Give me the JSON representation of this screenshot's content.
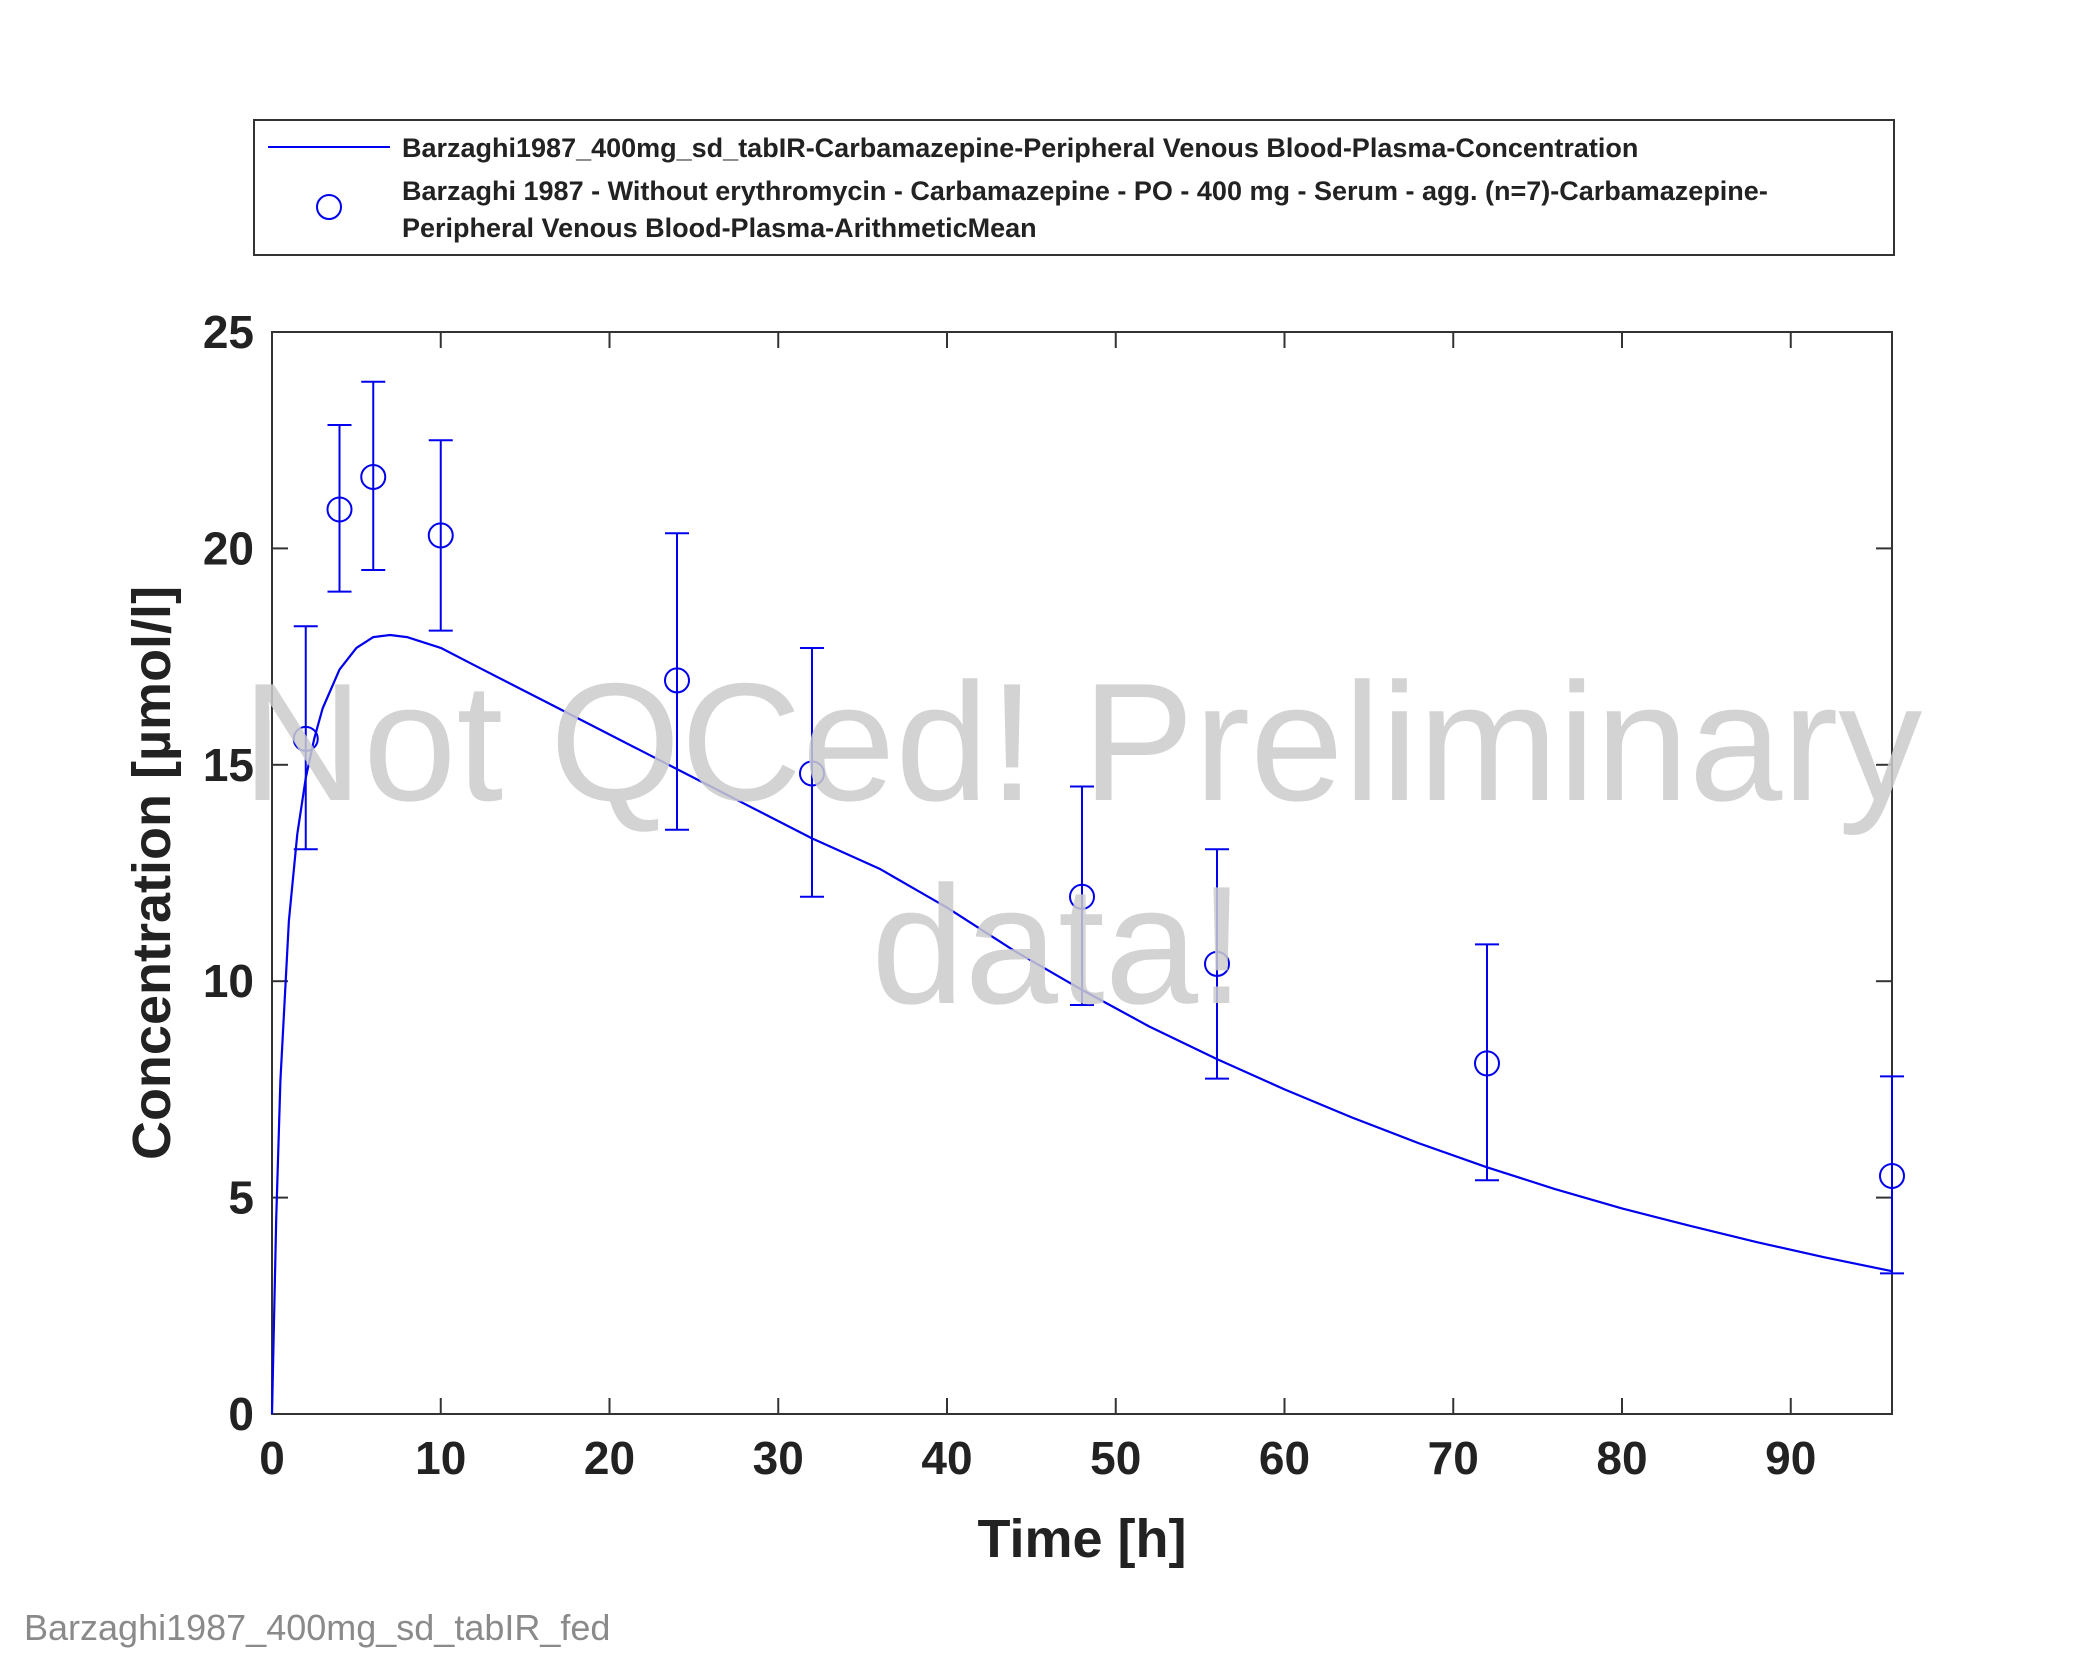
{
  "chart_data": {
    "type": "line",
    "xlabel": "Time [h]",
    "ylabel": "Concentration [µmol/l]",
    "xlim": [
      0,
      96
    ],
    "ylim": [
      0,
      25
    ],
    "xticks": [
      0,
      10,
      20,
      30,
      40,
      50,
      60,
      70,
      80,
      90
    ],
    "yticks": [
      0,
      5,
      10,
      15,
      20,
      25
    ],
    "grid": false,
    "legend_position": "top",
    "colors": {
      "series": "#0000ee",
      "axes": "#333333",
      "watermark": "#cccccc"
    },
    "series": [
      {
        "name": "Barzaghi1987_400mg_sd_tabIR-Carbamazepine-Peripheral Venous Blood-Plasma-Concentration",
        "kind": "line",
        "x": [
          0,
          0.25,
          0.5,
          1,
          1.5,
          2,
          2.5,
          3,
          4,
          5,
          6,
          7,
          8,
          10,
          12,
          16,
          20,
          24,
          28,
          32,
          36,
          40,
          44,
          48,
          52,
          56,
          60,
          64,
          68,
          72,
          76,
          80,
          84,
          88,
          92,
          96
        ],
        "y": [
          0,
          4.5,
          7.7,
          11.4,
          13.4,
          14.7,
          15.6,
          16.3,
          17.2,
          17.7,
          17.95,
          18.0,
          17.95,
          17.7,
          17.3,
          16.5,
          15.7,
          14.9,
          14.1,
          13.3,
          12.6,
          11.7,
          10.7,
          9.8,
          8.95,
          8.2,
          7.5,
          6.85,
          6.25,
          5.7,
          5.2,
          4.75,
          4.35,
          3.97,
          3.62,
          3.3
        ]
      },
      {
        "name_line1": "Barzaghi 1987 - Without erythromycin - Carbamazepine - PO - 400 mg - Serum - agg. (n=7)-Carbamazepine-",
        "name_line2": "Peripheral Venous Blood-Plasma-ArithmeticMean",
        "kind": "scatter-errorbar",
        "x": [
          2,
          4,
          6,
          10,
          24,
          32,
          48,
          56,
          72,
          96
        ],
        "y": [
          15.6,
          20.9,
          21.65,
          20.3,
          16.95,
          14.8,
          11.95,
          10.4,
          8.1,
          5.5
        ],
        "y_lower": [
          13.05,
          19.0,
          19.5,
          18.1,
          13.5,
          11.95,
          9.45,
          7.75,
          5.4,
          3.25
        ],
        "y_upper": [
          18.2,
          22.85,
          23.85,
          22.5,
          20.35,
          17.7,
          14.5,
          13.05,
          10.85,
          7.8
        ]
      }
    ]
  },
  "watermark": {
    "line1": "Not QCed! Preliminary",
    "line2": "data!"
  },
  "footer": "Barzaghi1987_400mg_sd_tabIR_fed"
}
